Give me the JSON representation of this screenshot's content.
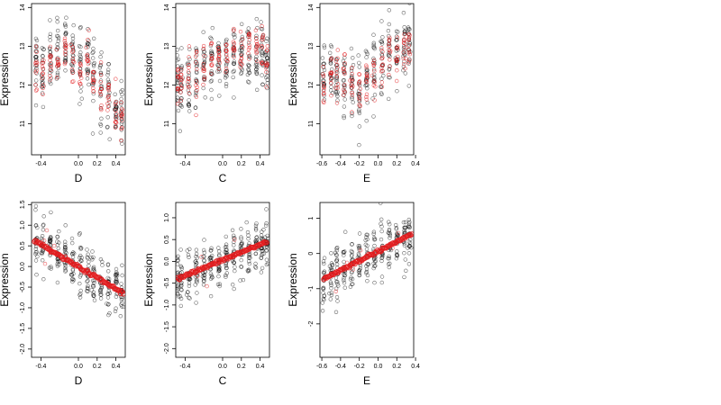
{
  "chart_data": [
    {
      "type": "scatter",
      "xlabel": "D",
      "ylabel": "Expression",
      "xlim": [
        -0.5,
        0.5
      ],
      "ylim": [
        10.2,
        14.1
      ],
      "xticks": [
        -0.4,
        0.0,
        0.2,
        0.4
      ],
      "xtick_labels": [
        "-0.4",
        "0.0",
        "0.2",
        "0.4"
      ],
      "yticks": [
        11,
        12,
        13,
        14
      ],
      "ytick_labels": [
        "11",
        "12",
        "13",
        "14"
      ],
      "series": [
        {
          "values": "black open points, x in [-0.45,0.48], y in [10.5,14.0], peak near x=0"
        },
        {
          "values": "red open points grouped at discrete x levels, y in [10.7,13.3]"
        }
      ],
      "x_levels": [
        -0.45,
        -0.38,
        -0.3,
        -0.22,
        -0.14,
        -0.06,
        0.02,
        0.1,
        0.16,
        0.24,
        0.32,
        0.4,
        0.46
      ],
      "red_means": [
        12.4,
        12.2,
        12.5,
        12.6,
        12.9,
        12.7,
        12.3,
        12.9,
        12.2,
        11.9,
        11.7,
        11.2,
        11.0
      ],
      "black_means": [
        12.6,
        12.3,
        12.6,
        12.8,
        13.1,
        12.9,
        12.5,
        12.7,
        12.2,
        11.9,
        11.7,
        11.4,
        11.2
      ]
    },
    {
      "type": "scatter",
      "xlabel": "C",
      "ylabel": "Expression",
      "xlim": [
        -0.5,
        0.5
      ],
      "ylim": [
        10.2,
        14.1
      ],
      "xticks": [
        -0.4,
        0.0,
        0.2,
        0.4
      ],
      "xtick_labels": [
        "-0.4",
        "0.0",
        "0.2",
        "0.4"
      ],
      "yticks": [
        11,
        12,
        13,
        14
      ],
      "ytick_labels": [
        "11",
        "12",
        "13",
        "14"
      ],
      "x_levels": [
        -0.48,
        -0.44,
        -0.36,
        -0.28,
        -0.2,
        -0.12,
        -0.04,
        0.04,
        0.12,
        0.2,
        0.28,
        0.36,
        0.42,
        0.47
      ],
      "red_means": [
        12.0,
        12.1,
        12.3,
        12.4,
        12.5,
        12.6,
        12.7,
        12.8,
        12.9,
        12.95,
        13.0,
        12.9,
        13.0,
        12.6
      ],
      "black_means": [
        12.0,
        11.9,
        12.1,
        12.3,
        12.4,
        12.6,
        12.5,
        12.6,
        12.9,
        12.8,
        12.9,
        12.7,
        12.8,
        12.6
      ]
    },
    {
      "type": "scatter",
      "xlabel": "E",
      "ylabel": "Expression",
      "xlim": [
        -0.62,
        0.38
      ],
      "ylim": [
        10.2,
        14.1
      ],
      "xticks": [
        -0.6,
        -0.4,
        -0.2,
        0.0,
        0.2,
        0.4
      ],
      "xtick_labels": [
        "-0.6",
        "-0.4",
        "-0.2",
        "0.0",
        "0.2",
        "0.4"
      ],
      "yticks": [
        11,
        12,
        13,
        14
      ],
      "ytick_labels": [
        "11",
        "12",
        "13",
        "14"
      ],
      "x_levels": [
        -0.58,
        -0.5,
        -0.44,
        -0.36,
        -0.28,
        -0.2,
        -0.12,
        -0.04,
        0.04,
        0.12,
        0.2,
        0.28,
        0.33
      ],
      "red_means": [
        12.0,
        12.2,
        12.3,
        12.3,
        12.0,
        11.8,
        12.1,
        12.2,
        12.4,
        12.9,
        12.8,
        12.9,
        13.0
      ],
      "black_means": [
        12.1,
        12.2,
        12.2,
        12.1,
        12.0,
        11.8,
        12.2,
        12.4,
        12.7,
        12.9,
        12.8,
        12.9,
        13.0
      ]
    },
    {
      "type": "scatter",
      "xlabel": "D",
      "ylabel": "Expression",
      "xlim": [
        -0.5,
        0.5
      ],
      "ylim": [
        -2.2,
        1.55
      ],
      "xticks": [
        -0.4,
        0.0,
        0.2,
        0.4
      ],
      "xtick_labels": [
        "-0.4",
        "0.0",
        "0.2",
        "0.4"
      ],
      "yticks": [
        -2.0,
        -1.5,
        -1.0,
        -0.5,
        0.0,
        0.5,
        1.0,
        1.5
      ],
      "ytick_labels": [
        "-2.0",
        "-1.5",
        "-1.0",
        "-0.5",
        "0.0",
        "0.5",
        "1.0",
        "1.5"
      ],
      "regression": {
        "x": [
          -0.47,
          0.48
        ],
        "y": [
          0.62,
          -0.65
        ]
      },
      "x_levels": [
        -0.45,
        -0.38,
        -0.3,
        -0.22,
        -0.14,
        -0.06,
        0.02,
        0.1,
        0.16,
        0.24,
        0.32,
        0.4,
        0.46
      ]
    },
    {
      "type": "scatter",
      "xlabel": "C",
      "ylabel": "Expression",
      "xlim": [
        -0.5,
        0.5
      ],
      "ylim": [
        -2.2,
        1.35
      ],
      "xticks": [
        -0.4,
        0.0,
        0.2,
        0.4
      ],
      "xtick_labels": [
        "-0.4",
        "0.0",
        "0.2",
        "0.4"
      ],
      "yticks": [
        -2.0,
        -1.5,
        -1.0,
        -0.5,
        0.0,
        0.5,
        1.0
      ],
      "ytick_labels": [
        "-2.0",
        "-1.5",
        "-1.0",
        "-0.5",
        "0.0",
        "0.5",
        "1.0"
      ],
      "regression": {
        "x": [
          -0.48,
          0.47
        ],
        "y": [
          -0.4,
          0.45
        ]
      },
      "x_levels": [
        -0.48,
        -0.44,
        -0.36,
        -0.28,
        -0.2,
        -0.12,
        -0.04,
        0.04,
        0.12,
        0.2,
        0.28,
        0.36,
        0.42,
        0.47
      ]
    },
    {
      "type": "scatter",
      "xlabel": "E",
      "ylabel": "Expression",
      "xlim": [
        -0.62,
        0.38
      ],
      "ylim": [
        -2.95,
        1.45
      ],
      "xticks": [
        -0.6,
        -0.4,
        -0.2,
        0.0,
        0.2,
        0.4
      ],
      "xtick_labels": [
        "-0.6",
        "-0.4",
        "-0.2",
        "0.0",
        "0.2",
        "0.4"
      ],
      "yticks": [
        -2,
        -1,
        0,
        1
      ],
      "ytick_labels": [
        "-2",
        "-1",
        "0",
        "1"
      ],
      "regression": {
        "x": [
          -0.58,
          0.36
        ],
        "y": [
          -0.72,
          0.55
        ]
      },
      "x_levels": [
        -0.58,
        -0.5,
        -0.44,
        -0.36,
        -0.28,
        -0.2,
        -0.12,
        -0.04,
        0.04,
        0.12,
        0.2,
        0.28,
        0.33
      ]
    }
  ],
  "colors": {
    "black_points": "#000000",
    "red_points": "#e31a1c",
    "background": "#ffffff"
  }
}
